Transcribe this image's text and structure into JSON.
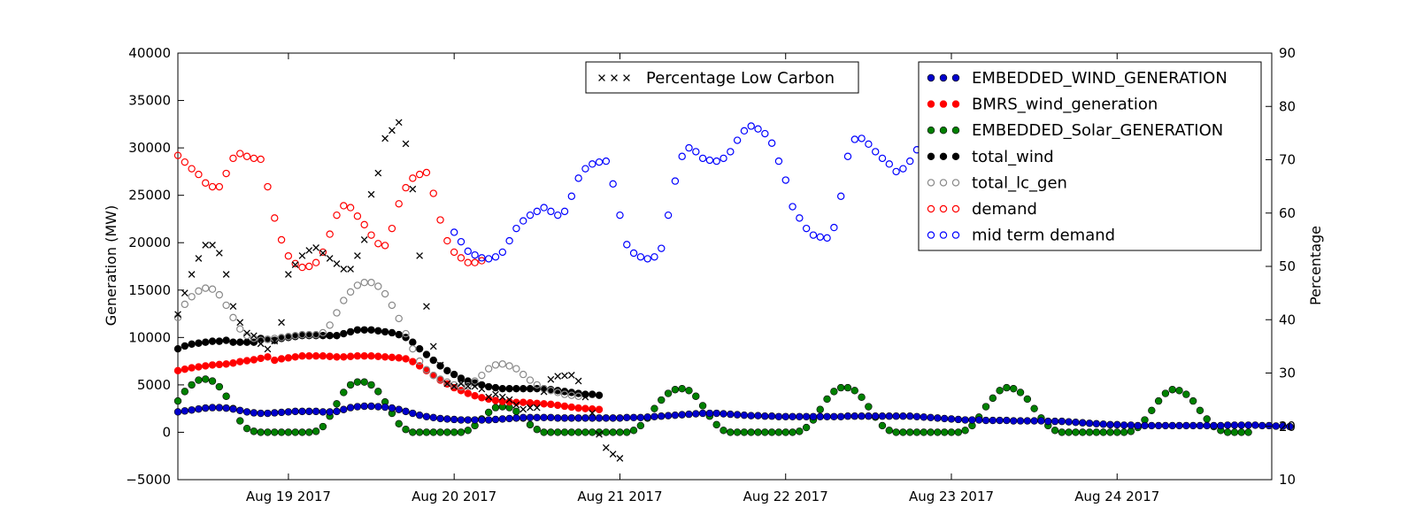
{
  "chart_data": {
    "type": "scatter",
    "title": "",
    "xlabel": "",
    "ylabel": "Generation (MW)",
    "y2label": "Percentage",
    "xlim": [
      0,
      6.6
    ],
    "ylim": [
      -5000,
      40000
    ],
    "y2lim": [
      10,
      90
    ],
    "x_ticks": [
      {
        "x": 0.667,
        "label": "Aug 19 2017"
      },
      {
        "x": 1.667,
        "label": "Aug 20 2017"
      },
      {
        "x": 2.667,
        "label": "Aug 21 2017"
      },
      {
        "x": 3.667,
        "label": "Aug 22 2017"
      },
      {
        "x": 4.667,
        "label": "Aug 23 2017"
      },
      {
        "x": 5.667,
        "label": "Aug 24 2017"
      }
    ],
    "y_ticks": [
      -5000,
      0,
      5000,
      10000,
      15000,
      20000,
      25000,
      30000,
      35000,
      40000
    ],
    "y2_ticks": [
      10,
      20,
      30,
      40,
      50,
      60,
      70,
      80,
      90
    ],
    "x_unit": "days since Aug 18 2017 08:00 (one point per 2 hours)",
    "legend_left": {
      "position": "top-center",
      "entries": [
        {
          "name": "Percentage Low Carbon",
          "series": "pct_low_carbon"
        }
      ]
    },
    "legend_right": {
      "position": "top-right",
      "entries": [
        {
          "name": "EMBEDDED_WIND_GENERATION",
          "series": "embedded_wind"
        },
        {
          "name": "BMRS_wind_generation",
          "series": "bmrs_wind"
        },
        {
          "name": "EMBEDDED_Solar_GENERATION",
          "series": "embedded_solar"
        },
        {
          "name": "total_wind",
          "series": "total_wind"
        },
        {
          "name": "total_lc_gen",
          "series": "total_lc_gen"
        },
        {
          "name": "demand",
          "series": "demand"
        },
        {
          "name": "mid term demand",
          "series": "mid_term_demand"
        }
      ]
    },
    "series": [
      {
        "key": "embedded_wind",
        "name": "EMBEDDED_WIND_GENERATION",
        "axis": "left",
        "marker": "filled-circle",
        "color": "#0000cc",
        "edge": "#000000",
        "x_start": 0,
        "x_step": 0.04167,
        "values": [
          2150,
          2250,
          2350,
          2450,
          2550,
          2600,
          2600,
          2550,
          2450,
          2300,
          2150,
          2050,
          2000,
          2000,
          2050,
          2100,
          2150,
          2200,
          2200,
          2200,
          2200,
          2150,
          2150,
          2200,
          2400,
          2600,
          2700,
          2750,
          2750,
          2700,
          2650,
          2550,
          2400,
          2200,
          2000,
          1800,
          1650,
          1550,
          1450,
          1400,
          1350,
          1300,
          1300,
          1300,
          1300,
          1300,
          1350,
          1400,
          1450,
          1500,
          1550,
          1550,
          1550,
          1550,
          1550,
          1500,
          1500,
          1500,
          1500,
          1500,
          1500,
          1500,
          1500,
          1500,
          1500,
          1550,
          1550,
          1550,
          1600,
          1650,
          1700,
          1750,
          1800,
          1850,
          1900,
          1950,
          2000,
          2000,
          2000,
          1950,
          1900,
          1850,
          1800,
          1750,
          1750,
          1700,
          1700,
          1650,
          1650,
          1650,
          1650,
          1650,
          1650,
          1650,
          1650,
          1650,
          1650,
          1700,
          1700,
          1700,
          1700,
          1700,
          1700,
          1700,
          1700,
          1700,
          1700,
          1650,
          1600,
          1550,
          1500,
          1450,
          1400,
          1350,
          1300,
          1300,
          1300,
          1250,
          1250,
          1250,
          1250,
          1200,
          1200,
          1200,
          1200,
          1200,
          1150,
          1150,
          1150,
          1100,
          1050,
          1000,
          950,
          900,
          850,
          800,
          800,
          750,
          750,
          700,
          700,
          700,
          700,
          700,
          700,
          700,
          700,
          700,
          700,
          700,
          700,
          700,
          750,
          750,
          750,
          750,
          750,
          700,
          700,
          650,
          650,
          600
        ]
      },
      {
        "key": "bmrs_wind",
        "name": "BMRS_wind_generation",
        "axis": "left",
        "marker": "filled-circle",
        "color": "#ff0000",
        "edge": "#ff0000",
        "x_start": 0,
        "x_step": 0.04167,
        "values": [
          6500,
          6650,
          6800,
          6900,
          7000,
          7100,
          7150,
          7200,
          7300,
          7450,
          7550,
          7650,
          7800,
          7950,
          7600,
          7750,
          7850,
          7950,
          8050,
          8050,
          8050,
          8050,
          8000,
          7950,
          7950,
          8000,
          8050,
          8050,
          8050,
          8000,
          7950,
          7900,
          7850,
          7750,
          7450,
          7000,
          6500,
          6000,
          5500,
          5100,
          4700,
          4400,
          4100,
          3850,
          3650,
          3500,
          3350,
          3250,
          3200,
          3150,
          3150,
          3100,
          3050,
          3000,
          2950,
          2850,
          2750,
          2650,
          2550,
          2500,
          2450,
          2400
        ]
      },
      {
        "key": "embedded_solar",
        "name": "EMBEDDED_Solar_GENERATION",
        "axis": "left",
        "marker": "filled-circle",
        "color": "#008000",
        "edge": "#000000",
        "x_start": 0,
        "x_step": 0.04167,
        "values": [
          3300,
          4300,
          5000,
          5500,
          5600,
          5400,
          4800,
          3800,
          2500,
          1200,
          400,
          100,
          0,
          0,
          0,
          0,
          0,
          0,
          0,
          0,
          100,
          600,
          1700,
          3000,
          4200,
          5000,
          5300,
          5300,
          5000,
          4300,
          3200,
          2000,
          900,
          300,
          0,
          0,
          0,
          0,
          0,
          0,
          0,
          0,
          200,
          700,
          1400,
          2100,
          2600,
          2700,
          2600,
          2200,
          1500,
          800,
          300,
          0,
          0,
          0,
          0,
          0,
          0,
          0,
          0,
          0,
          0,
          0,
          0,
          0,
          200,
          700,
          1500,
          2500,
          3400,
          4100,
          4500,
          4600,
          4400,
          3800,
          2800,
          1700,
          800,
          200,
          0,
          0,
          0,
          0,
          0,
          0,
          0,
          0,
          0,
          0,
          100,
          500,
          1300,
          2400,
          3500,
          4300,
          4700,
          4700,
          4400,
          3700,
          2700,
          1600,
          700,
          200,
          0,
          0,
          0,
          0,
          0,
          0,
          0,
          0,
          0,
          0,
          200,
          700,
          1600,
          2700,
          3600,
          4400,
          4700,
          4600,
          4200,
          3500,
          2500,
          1500,
          700,
          200,
          0,
          0,
          0,
          0,
          0,
          0,
          0,
          0,
          0,
          0,
          100,
          500,
          1300,
          2300,
          3300,
          4100,
          4500,
          4400,
          4000,
          3300,
          2300,
          1400,
          600,
          200,
          0,
          0,
          0,
          0
        ]
      },
      {
        "key": "total_wind",
        "name": "total_wind",
        "axis": "left",
        "marker": "filled-circle",
        "color": "#000000",
        "edge": "#000000",
        "x_start": 0,
        "x_step": 0.04167,
        "values": [
          8800,
          9100,
          9300,
          9400,
          9500,
          9600,
          9600,
          9700,
          9500,
          9500,
          9500,
          9500,
          9900,
          9800,
          9700,
          9900,
          10000,
          10100,
          10200,
          10200,
          10200,
          10200,
          10200,
          10200,
          10400,
          10600,
          10800,
          10800,
          10800,
          10700,
          10600,
          10500,
          10300,
          10000,
          9500,
          8800,
          8200,
          7600,
          7000,
          6500,
          6100,
          5700,
          5400,
          5200,
          5000,
          4800,
          4700,
          4600,
          4600,
          4600,
          4600,
          4600,
          4600,
          4600,
          4500,
          4400,
          4300,
          4200,
          4100,
          4000,
          4000,
          3900
        ]
      },
      {
        "key": "total_lc_gen",
        "name": "total_lc_gen",
        "axis": "left",
        "marker": "open-circle",
        "color": "#888888",
        "x_start": 0,
        "x_step": 0.04167,
        "values": [
          12100,
          13500,
          14300,
          14900,
          15200,
          15100,
          14500,
          13400,
          12100,
          10900,
          10200,
          9900,
          9700,
          9800,
          9900,
          10000,
          10100,
          10200,
          10300,
          10300,
          10300,
          10500,
          11300,
          12600,
          13900,
          14800,
          15500,
          15800,
          15800,
          15400,
          14600,
          13400,
          12000,
          10400,
          8800,
          7500,
          6600,
          6000,
          5600,
          5300,
          5000,
          4800,
          4900,
          5400,
          6000,
          6700,
          7100,
          7200,
          7000,
          6700,
          6100,
          5500,
          5000,
          4600,
          4400,
          4200,
          4000,
          3900,
          3800
        ]
      },
      {
        "key": "demand",
        "name": "demand",
        "axis": "left",
        "marker": "open-circle",
        "color": "#ff0000",
        "x_start": 0,
        "x_step": 0.04167,
        "values": [
          29200,
          28500,
          27800,
          27200,
          26300,
          25900,
          25900,
          27300,
          28900,
          29400,
          29100,
          28900,
          28800,
          25900,
          22600,
          20300,
          18600,
          17800,
          17400,
          17500,
          17900,
          19000,
          20900,
          22900,
          23900,
          23700,
          22800,
          21900,
          20800,
          19900,
          19700,
          21500,
          24100,
          25800,
          26800,
          27200,
          27400,
          25200,
          22400,
          20200,
          19000,
          18400,
          17900,
          17900,
          18100
        ]
      },
      {
        "key": "mid_term_demand",
        "name": "mid term demand",
        "axis": "left",
        "marker": "open-circle",
        "color": "#0000ff",
        "x_start": 1.667,
        "x_step": 0.04167,
        "values": [
          21100,
          20100,
          19100,
          18700,
          18400,
          18300,
          18500,
          19000,
          20200,
          21500,
          22300,
          22900,
          23300,
          23700,
          23300,
          22900,
          23300,
          24900,
          26800,
          27800,
          28300,
          28500,
          28600,
          26200,
          22900,
          19800,
          18900,
          18500,
          18300,
          18500,
          19400,
          22900,
          26500,
          29100,
          30000,
          29600,
          28900,
          28700,
          28600,
          28900,
          29600,
          30800,
          31800,
          32300,
          32000,
          31500,
          30500,
          28600,
          26600,
          23800,
          22600,
          21500,
          20800,
          20600,
          20500,
          21600,
          24900,
          29100,
          30900,
          31000,
          30400,
          29600,
          28900,
          28300,
          27500,
          27800,
          28600,
          29800,
          31000,
          32100,
          32800,
          33500,
          34000
        ]
      },
      {
        "key": "pct_low_carbon",
        "name": "Percentage Low Carbon",
        "axis": "right",
        "marker": "x",
        "color": "#000000",
        "x_start": 0,
        "x_step": 0.04167,
        "values": [
          41,
          45,
          48.5,
          51.5,
          54,
          54,
          52.5,
          48.5,
          42.5,
          39.5,
          37.5,
          37,
          35.5,
          34.5,
          36,
          39.5,
          48.5,
          50.3,
          52,
          53,
          53.5,
          52.5,
          51.5,
          50.5,
          49.5,
          49.5,
          52,
          55,
          63.5,
          67.5,
          74,
          75.5,
          77,
          73,
          64.5,
          52,
          42.5,
          35,
          31.5,
          28,
          27.5,
          28,
          27.5,
          27.5,
          27,
          25.5,
          26,
          25.5,
          25,
          24,
          23.2,
          23.5,
          23.5,
          26.5,
          28.8,
          29.4,
          29.5,
          29.6,
          28.5,
          25.5,
          22.5,
          18.5,
          16,
          14.8,
          14
        ]
      }
    ]
  }
}
